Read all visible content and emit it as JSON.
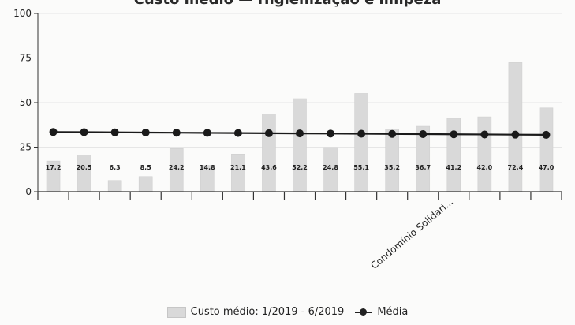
{
  "chart_data": {
    "type": "bar",
    "title": "Custo médio — Higienização e limpeza",
    "categories": [
      "",
      "",
      "",
      "",
      "",
      "",
      "",
      "",
      "",
      "",
      "",
      "",
      "",
      "Condomínio Solidari...",
      "",
      "",
      ""
    ],
    "series": [
      {
        "name": "Custo médio: 1/2019 - 6/2019",
        "type": "bar",
        "values": [
          17.2,
          20.5,
          6.3,
          8.5,
          24.2,
          14.8,
          21.1,
          43.6,
          52.2,
          24.8,
          55.1,
          35.2,
          36.7,
          41.2,
          42.0,
          72.4,
          47.0
        ],
        "labels": [
          "17,2",
          "20,5",
          "6,3",
          "8,5",
          "24,2",
          "14,8",
          "21,1",
          "43,6",
          "52,2",
          "24,8",
          "55,1",
          "35,2",
          "36,7",
          "41,2",
          "42,0",
          "72,4",
          "47,0"
        ],
        "color": "#d9d9d9"
      },
      {
        "name": "Média",
        "type": "line",
        "values": [
          33.5,
          33.4,
          33.3,
          33.2,
          33.1,
          33.0,
          32.9,
          32.8,
          32.7,
          32.6,
          32.5,
          32.4,
          32.3,
          32.2,
          32.1,
          32.0,
          31.9
        ],
        "color": "#1a1a1a"
      }
    ],
    "y_ticks": [
      0,
      25,
      50,
      75,
      100
    ],
    "ylim": [
      0,
      100
    ],
    "grid": true,
    "legend_position": "bottom"
  }
}
